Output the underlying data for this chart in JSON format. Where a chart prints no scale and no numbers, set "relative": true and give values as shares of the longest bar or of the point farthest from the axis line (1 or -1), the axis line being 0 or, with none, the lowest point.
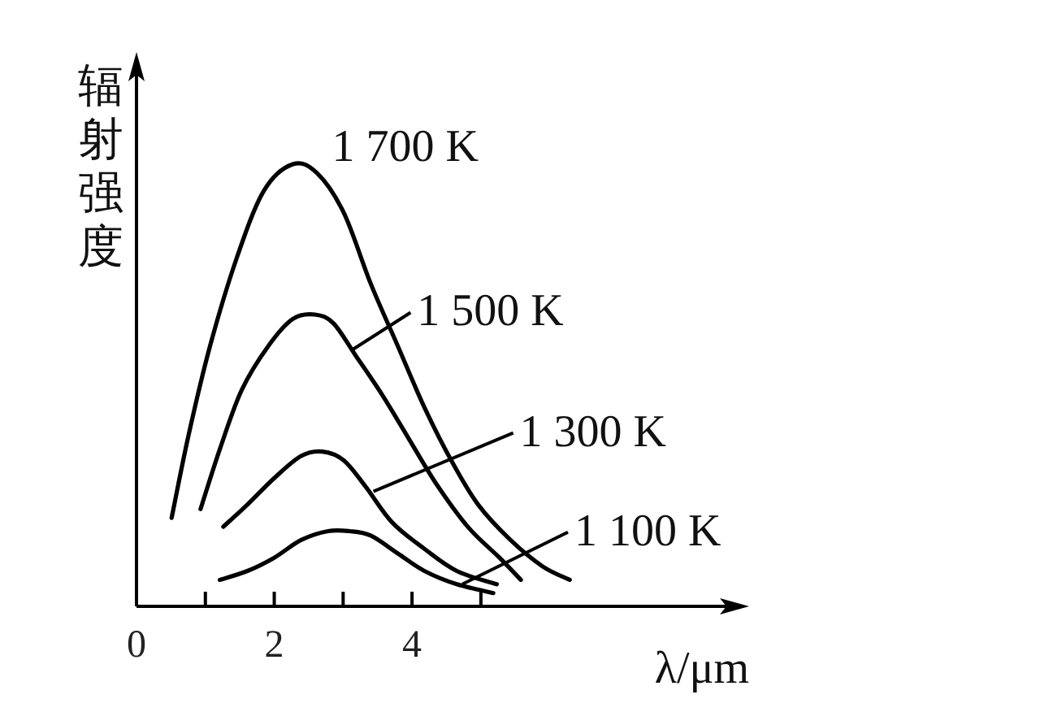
{
  "chart_data": {
    "type": "line",
    "relative": true,
    "ylabel": "辐射强度",
    "xlabel": "λ/μm",
    "xlim": [
      0,
      8.8
    ],
    "xticks": [
      0,
      {
        "value": 1,
        "label": null
      },
      2,
      {
        "value": 3,
        "label": null
      },
      4,
      {
        "value": 5,
        "label": null
      }
    ],
    "marker": "none",
    "line_style": "solid",
    "series": [
      {
        "color": "#000000",
        "x": [
          0.51,
          0.76,
          1.07,
          1.46,
          1.85,
          2.27,
          2.62,
          3.01,
          3.4,
          3.79,
          4.18,
          4.57,
          4.96,
          5.43,
          5.9,
          6.29
        ],
        "values": [
          0.2,
          0.39,
          0.59,
          0.79,
          0.94,
          1.0,
          0.98,
          0.89,
          0.73,
          0.59,
          0.45,
          0.33,
          0.23,
          0.15,
          0.09,
          0.06
        ]
      },
      {
        "color": "#000000",
        "x": [
          0.93,
          1.22,
          1.53,
          1.92,
          2.27,
          2.59,
          2.86,
          3.17,
          3.56,
          3.95,
          4.34,
          4.81,
          5.27,
          5.58
        ],
        "values": [
          0.22,
          0.36,
          0.49,
          0.59,
          0.65,
          0.66,
          0.64,
          0.57,
          0.48,
          0.38,
          0.28,
          0.18,
          0.11,
          0.06
        ]
      },
      {
        "color": "#000000",
        "x": [
          1.26,
          1.61,
          2.0,
          2.39,
          2.7,
          3.01,
          3.33,
          3.71,
          4.18,
          4.65,
          5.23
        ],
        "values": [
          0.18,
          0.23,
          0.29,
          0.34,
          0.35,
          0.33,
          0.27,
          0.19,
          0.13,
          0.08,
          0.05
        ]
      },
      {
        "color": "#000000",
        "x": [
          1.21,
          1.61,
          2.0,
          2.39,
          2.78,
          3.09,
          3.4,
          3.79,
          4.18,
          4.65,
          5.18
        ],
        "values": [
          0.06,
          0.08,
          0.11,
          0.15,
          0.17,
          0.17,
          0.16,
          0.12,
          0.08,
          0.05,
          0.03
        ]
      }
    ],
    "annotations": [
      {
        "text": "1 700 K",
        "x": 2.27,
        "y": 1.0
      },
      {
        "text": "1 500 K",
        "x": 3.13,
        "y": 0.58
      },
      {
        "text": "1 300 K",
        "x": 3.44,
        "y": 0.26
      },
      {
        "text": "1 100 K",
        "x": 4.73,
        "y": 0.05
      }
    ]
  }
}
